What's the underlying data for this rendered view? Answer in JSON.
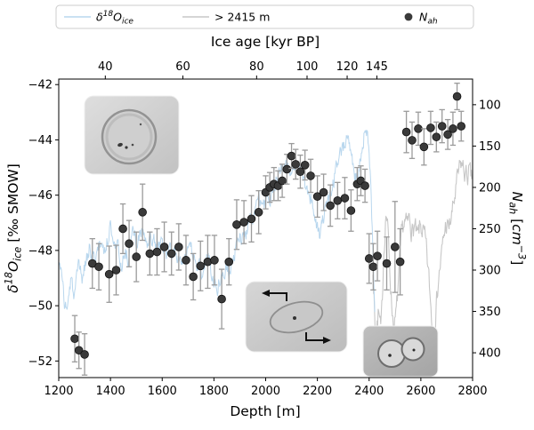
{
  "figure": {
    "background": "#ffffff"
  },
  "chart_data": {
    "type": "line+scatter",
    "top_axis": {
      "label": "Ice age [kyr BP]",
      "ticks": [
        {
          "age": "40",
          "depth": 1380
        },
        {
          "age": "60",
          "depth": 1680
        },
        {
          "age": "80",
          "depth": 1965
        },
        {
          "age": "100",
          "depth": 2160
        },
        {
          "age": "120",
          "depth": 2315
        },
        {
          "age": "145",
          "depth": 2430
        }
      ]
    },
    "x_axis": {
      "label": "Depth [m]",
      "range": [
        1200,
        2800
      ],
      "ticks": [
        1200,
        1400,
        1600,
        1800,
        2000,
        2200,
        2400,
        2600,
        2800
      ]
    },
    "y_left": {
      "label_text": "δ18Oice [‰ SMOW]",
      "label_parts": [
        {
          "t": "δ",
          "it": true
        },
        {
          "t": "18",
          "sup": true,
          "it": true
        },
        {
          "t": "O",
          "it": true
        },
        {
          "t": "ice",
          "sub": true,
          "it": true
        },
        {
          "t": " [‰ SMOW]"
        }
      ],
      "range": [
        -41.8,
        -52.6
      ],
      "ticks": [
        -42,
        -44,
        -46,
        -48,
        -50,
        -52
      ],
      "inverted": true
    },
    "y_right": {
      "label_text": "Nah [cm−3]",
      "label_parts": [
        {
          "t": "N",
          "it": true
        },
        {
          "t": "ah",
          "sub": true,
          "it": true
        },
        {
          "t": " ["
        },
        {
          "t": "cm",
          "it": true
        },
        {
          "t": "−3",
          "sup": true,
          "it": true
        },
        {
          "t": "]"
        }
      ],
      "range": [
        69,
        430
      ],
      "ticks": [
        100,
        150,
        200,
        250,
        300,
        350,
        400
      ],
      "inverted": true
    },
    "legend": {
      "entries": [
        {
          "label_text": "δ18Oice",
          "parts": [
            {
              "t": "δ",
              "it": true
            },
            {
              "t": "18",
              "sup": true,
              "it": true
            },
            {
              "t": "O",
              "it": true
            },
            {
              "t": "ice",
              "sub": true,
              "it": true
            }
          ],
          "swatch": "line",
          "color": "#b9d7ee"
        },
        {
          "label_text": "> 2415 m",
          "parts": [
            {
              "t": "> 2415 m"
            }
          ],
          "swatch": "line",
          "color": "#c7c7c7"
        },
        {
          "label_text": "Nah",
          "parts": [
            {
              "t": "N",
              "it": true
            },
            {
              "t": "ah",
              "sub": true,
              "it": true
            }
          ],
          "swatch": "dot",
          "color": "#3a3a3a"
        }
      ]
    },
    "series": [
      {
        "name": "delta18O_ice",
        "type": "line",
        "axis": "left",
        "color": "#b9d7ee",
        "noise": 0.55,
        "anchors": [
          [
            1200,
            -48.6
          ],
          [
            1215,
            -49.4
          ],
          [
            1230,
            -49.8
          ],
          [
            1245,
            -49.0
          ],
          [
            1260,
            -49.5
          ],
          [
            1275,
            -48.3
          ],
          [
            1290,
            -49.2
          ],
          [
            1305,
            -48.4
          ],
          [
            1320,
            -47.8
          ],
          [
            1335,
            -48.4
          ],
          [
            1350,
            -47.9
          ],
          [
            1365,
            -47.4
          ],
          [
            1380,
            -47.8
          ],
          [
            1395,
            -46.9
          ],
          [
            1410,
            -47.4
          ],
          [
            1425,
            -47.8
          ],
          [
            1440,
            -48.3
          ],
          [
            1455,
            -47.7
          ],
          [
            1470,
            -48.0
          ],
          [
            1485,
            -47.5
          ],
          [
            1500,
            -47.9
          ],
          [
            1515,
            -47.3
          ],
          [
            1530,
            -47.8
          ],
          [
            1545,
            -48.2
          ],
          [
            1560,
            -47.8
          ],
          [
            1575,
            -48.0
          ],
          [
            1590,
            -47.7
          ],
          [
            1605,
            -48.0
          ],
          [
            1620,
            -48.3
          ],
          [
            1635,
            -47.9
          ],
          [
            1650,
            -48.2
          ],
          [
            1665,
            -48.4
          ],
          [
            1680,
            -48.1
          ],
          [
            1695,
            -48.5
          ],
          [
            1710,
            -48.2
          ],
          [
            1725,
            -48.5
          ],
          [
            1740,
            -48.3
          ],
          [
            1755,
            -48.6
          ],
          [
            1770,
            -48.3
          ],
          [
            1785,
            -48.7
          ],
          [
            1800,
            -49.0
          ],
          [
            1815,
            -49.4
          ],
          [
            1830,
            -49.1
          ],
          [
            1845,
            -48.7
          ],
          [
            1860,
            -48.9
          ],
          [
            1875,
            -48.3
          ],
          [
            1890,
            -47.8
          ],
          [
            1905,
            -47.5
          ],
          [
            1920,
            -47.1
          ],
          [
            1935,
            -46.8
          ],
          [
            1950,
            -46.6
          ],
          [
            1965,
            -46.3
          ],
          [
            1980,
            -46.1
          ],
          [
            1995,
            -45.9
          ],
          [
            2010,
            -45.7
          ],
          [
            2025,
            -45.6
          ],
          [
            2040,
            -45.4
          ],
          [
            2055,
            -45.4
          ],
          [
            2070,
            -45.2
          ],
          [
            2085,
            -45.1
          ],
          [
            2100,
            -45.0
          ],
          [
            2115,
            -45.2
          ],
          [
            2130,
            -45.4
          ],
          [
            2145,
            -45.6
          ],
          [
            2160,
            -45.9
          ],
          [
            2175,
            -46.2
          ],
          [
            2190,
            -46.8
          ],
          [
            2205,
            -47.3
          ],
          [
            2220,
            -46.7
          ],
          [
            2235,
            -46.2
          ],
          [
            2250,
            -45.8
          ],
          [
            2265,
            -45.4
          ],
          [
            2280,
            -45.0
          ],
          [
            2295,
            -44.4
          ],
          [
            2310,
            -43.7
          ],
          [
            2325,
            -44.3
          ],
          [
            2340,
            -45.1
          ],
          [
            2355,
            -45.4
          ],
          [
            2370,
            -44.4
          ],
          [
            2385,
            -43.5
          ],
          [
            2395,
            -44.3
          ],
          [
            2405,
            -46.0
          ],
          [
            2412,
            -48.0
          ],
          [
            2418,
            -50.0
          ],
          [
            2422,
            -51.2
          ]
        ]
      },
      {
        "name": "gt_2415m",
        "type": "line",
        "axis": "left",
        "color": "#c7c7c7",
        "noise": 0.7,
        "anchors": [
          [
            2415,
            -49.0
          ],
          [
            2425,
            -50.6
          ],
          [
            2435,
            -49.6
          ],
          [
            2445,
            -50.9
          ],
          [
            2455,
            -48.0
          ],
          [
            2465,
            -46.9
          ],
          [
            2475,
            -48.4
          ],
          [
            2485,
            -50.2
          ],
          [
            2495,
            -51.1
          ],
          [
            2505,
            -50.2
          ],
          [
            2515,
            -48.6
          ],
          [
            2525,
            -47.3
          ],
          [
            2535,
            -46.8
          ],
          [
            2545,
            -47.1
          ],
          [
            2555,
            -46.7
          ],
          [
            2565,
            -47.3
          ],
          [
            2575,
            -46.9
          ],
          [
            2585,
            -47.4
          ],
          [
            2595,
            -47.0
          ],
          [
            2605,
            -47.3
          ],
          [
            2615,
            -47.8
          ],
          [
            2625,
            -48.8
          ],
          [
            2635,
            -50.0
          ],
          [
            2645,
            -51.0
          ],
          [
            2655,
            -50.0
          ],
          [
            2665,
            -48.8
          ],
          [
            2675,
            -48.0
          ],
          [
            2685,
            -47.4
          ],
          [
            2695,
            -47.1
          ],
          [
            2705,
            -47.6
          ],
          [
            2715,
            -47.0
          ],
          [
            2725,
            -46.4
          ],
          [
            2735,
            -45.6
          ],
          [
            2745,
            -44.9
          ],
          [
            2755,
            -44.5
          ],
          [
            2765,
            -44.9
          ],
          [
            2775,
            -45.2
          ],
          [
            2785,
            -45.0
          ],
          [
            2795,
            -45.3
          ],
          [
            2800,
            -45.1
          ]
        ]
      },
      {
        "name": "N_ah",
        "type": "scatter+errorbar",
        "axis": "right",
        "marker_color": "#3a3a3a",
        "edge_color": "#141414",
        "errorbar_color": "#9b9b9b",
        "points": [
          [
            1262,
            383,
            28
          ],
          [
            1278,
            397,
            22
          ],
          [
            1300,
            402,
            25
          ],
          [
            1330,
            292,
            30
          ],
          [
            1355,
            296,
            28
          ],
          [
            1395,
            305,
            34
          ],
          [
            1422,
            300,
            30
          ],
          [
            1448,
            250,
            30
          ],
          [
            1472,
            268,
            28
          ],
          [
            1500,
            284,
            30
          ],
          [
            1524,
            230,
            34
          ],
          [
            1552,
            280,
            26
          ],
          [
            1580,
            278,
            28
          ],
          [
            1608,
            272,
            30
          ],
          [
            1636,
            280,
            26
          ],
          [
            1664,
            272,
            28
          ],
          [
            1692,
            288,
            30
          ],
          [
            1720,
            308,
            28
          ],
          [
            1748,
            295,
            30
          ],
          [
            1776,
            290,
            32
          ],
          [
            1802,
            288,
            30
          ],
          [
            1830,
            335,
            36
          ],
          [
            1858,
            290,
            28
          ],
          [
            1888,
            245,
            30
          ],
          [
            1916,
            242,
            26
          ],
          [
            1945,
            238,
            28
          ],
          [
            1973,
            230,
            26
          ],
          [
            2000,
            206,
            20
          ],
          [
            2016,
            200,
            18
          ],
          [
            2032,
            196,
            20
          ],
          [
            2048,
            198,
            18
          ],
          [
            2064,
            192,
            20
          ],
          [
            2082,
            178,
            18
          ],
          [
            2100,
            162,
            15
          ],
          [
            2116,
            172,
            18
          ],
          [
            2134,
            181,
            20
          ],
          [
            2152,
            173,
            18
          ],
          [
            2174,
            186,
            20
          ],
          [
            2200,
            211,
            25
          ],
          [
            2224,
            206,
            22
          ],
          [
            2250,
            222,
            25
          ],
          [
            2278,
            216,
            22
          ],
          [
            2306,
            213,
            25
          ],
          [
            2330,
            228,
            25
          ],
          [
            2354,
            196,
            20
          ],
          [
            2368,
            192,
            18
          ],
          [
            2384,
            198,
            20
          ],
          [
            2400,
            286,
            30
          ],
          [
            2416,
            296,
            28
          ],
          [
            2432,
            283,
            30
          ],
          [
            2468,
            292,
            32
          ],
          [
            2500,
            272,
            55
          ],
          [
            2520,
            290,
            40
          ],
          [
            2544,
            133,
            25
          ],
          [
            2566,
            143,
            22
          ],
          [
            2590,
            129,
            20
          ],
          [
            2612,
            151,
            22
          ],
          [
            2638,
            128,
            20
          ],
          [
            2660,
            139,
            18
          ],
          [
            2682,
            126,
            20
          ],
          [
            2704,
            136,
            18
          ],
          [
            2724,
            129,
            20
          ],
          [
            2740,
            90,
            16
          ],
          [
            2756,
            126,
            18
          ]
        ]
      }
    ],
    "insets": [
      {
        "name": "air-bubble-micrograph"
      },
      {
        "name": "deformed-grain-micrograph-with-shear-arrows"
      },
      {
        "name": "paired-bubbles-micrograph"
      }
    ]
  }
}
